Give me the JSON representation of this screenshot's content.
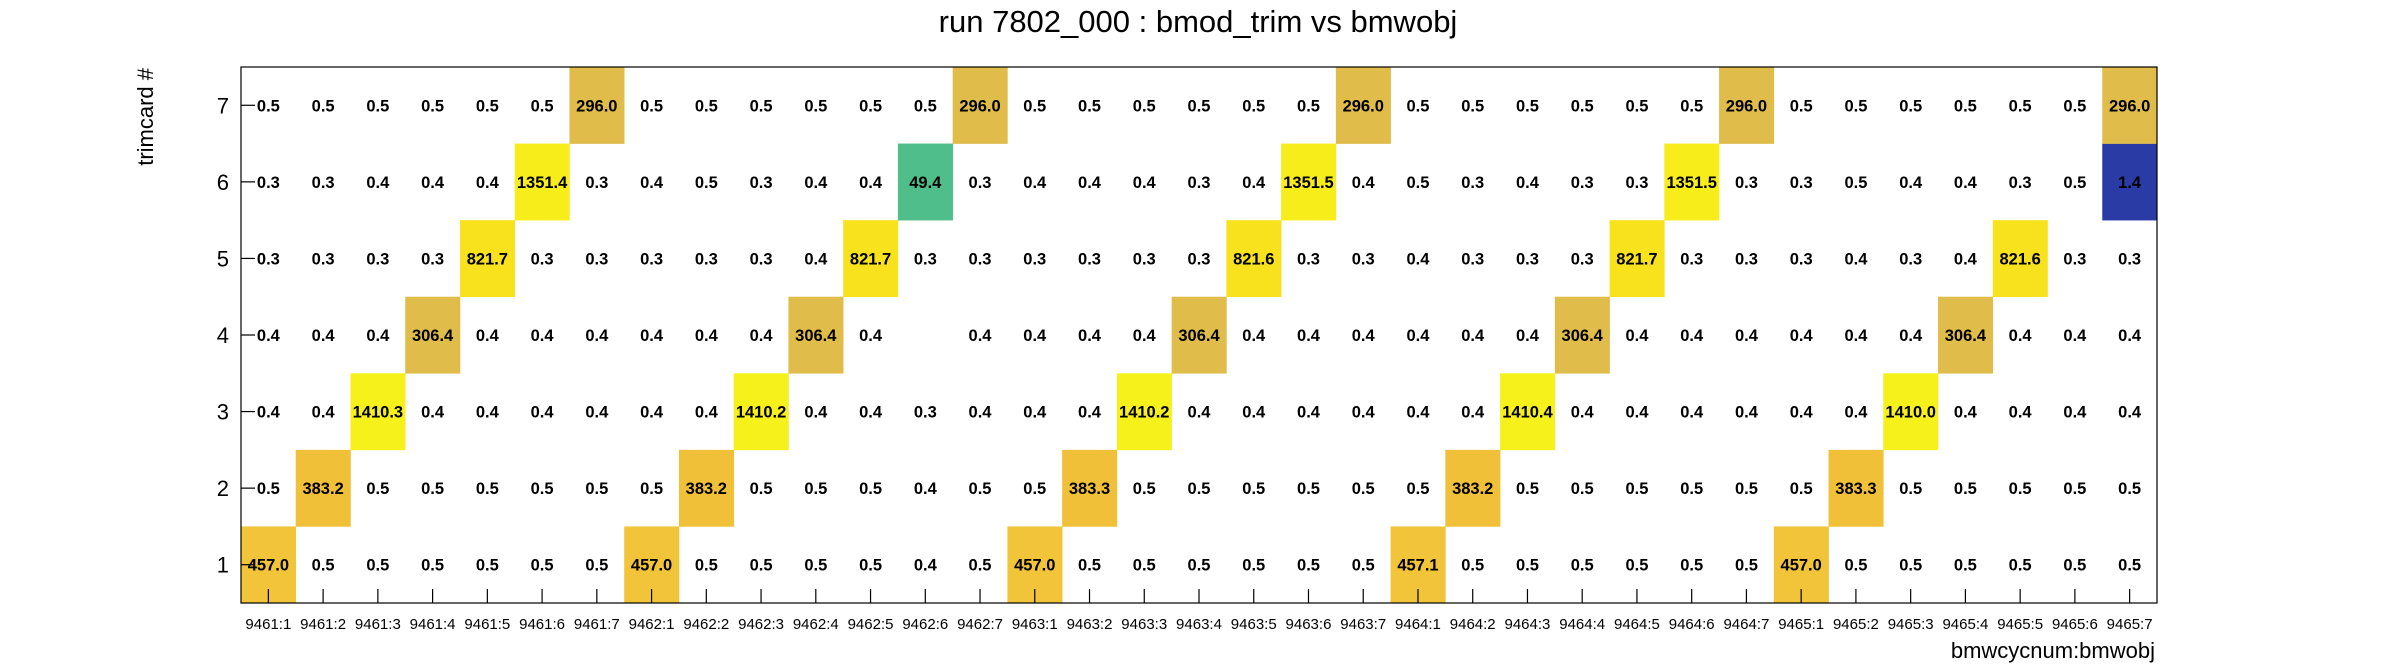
{
  "chart_data": {
    "type": "heatmap",
    "title": "run 7802_000 : bmod_trim vs bmwobj",
    "xlabel": "bmwcycnum:bmwobj",
    "ylabel": "trimcard #",
    "x_categories": [
      "9461:1",
      "9461:2",
      "9461:3",
      "9461:4",
      "9461:5",
      "9461:6",
      "9461:7",
      "9462:1",
      "9462:2",
      "9462:3",
      "9462:4",
      "9462:5",
      "9462:6",
      "9462:7",
      "9463:1",
      "9463:2",
      "9463:3",
      "9463:4",
      "9463:5",
      "9463:6",
      "9463:7",
      "9464:1",
      "9464:2",
      "9464:3",
      "9464:4",
      "9464:5",
      "9464:6",
      "9464:7",
      "9465:1",
      "9465:2",
      "9465:3",
      "9465:4",
      "9465:5",
      "9465:6",
      "9465:7"
    ],
    "y_categories": [
      "1",
      "2",
      "3",
      "4",
      "5",
      "6",
      "7"
    ],
    "values": [
      [
        457.0,
        0.5,
        0.5,
        0.5,
        0.5,
        0.5,
        0.5,
        457.0,
        0.5,
        0.5,
        0.5,
        0.5,
        0.4,
        0.5,
        457.0,
        0.5,
        0.5,
        0.5,
        0.5,
        0.5,
        0.5,
        457.1,
        0.5,
        0.5,
        0.5,
        0.5,
        0.5,
        0.5,
        457.0,
        0.5,
        0.5,
        0.5,
        0.5,
        0.5,
        0.5
      ],
      [
        0.5,
        383.2,
        0.5,
        0.5,
        0.5,
        0.5,
        0.5,
        0.5,
        383.2,
        0.5,
        0.5,
        0.5,
        0.4,
        0.5,
        0.5,
        383.3,
        0.5,
        0.5,
        0.5,
        0.5,
        0.5,
        0.5,
        383.2,
        0.5,
        0.5,
        0.5,
        0.5,
        0.5,
        0.5,
        383.3,
        0.5,
        0.5,
        0.5,
        0.5,
        0.5
      ],
      [
        0.4,
        0.4,
        1410.3,
        0.4,
        0.4,
        0.4,
        0.4,
        0.4,
        0.4,
        1410.2,
        0.4,
        0.4,
        0.3,
        0.4,
        0.4,
        0.4,
        1410.2,
        0.4,
        0.4,
        0.4,
        0.4,
        0.4,
        0.4,
        1410.4,
        0.4,
        0.4,
        0.4,
        0.4,
        0.4,
        0.4,
        1410.0,
        0.4,
        0.4,
        0.4,
        0.4
      ],
      [
        0.4,
        0.4,
        0.4,
        306.4,
        0.4,
        0.4,
        0.4,
        0.4,
        0.4,
        0.4,
        306.4,
        0.4,
        null,
        0.4,
        0.4,
        0.4,
        0.4,
        306.4,
        0.4,
        0.4,
        0.4,
        0.4,
        0.4,
        0.4,
        306.4,
        0.4,
        0.4,
        0.4,
        0.4,
        0.4,
        0.4,
        306.4,
        0.4,
        0.4,
        0.4
      ],
      [
        0.3,
        0.3,
        0.3,
        0.3,
        821.7,
        0.3,
        0.3,
        0.3,
        0.3,
        0.3,
        0.4,
        821.7,
        0.3,
        0.3,
        0.3,
        0.3,
        0.3,
        0.3,
        821.6,
        0.3,
        0.3,
        0.4,
        0.3,
        0.3,
        0.3,
        821.7,
        0.3,
        0.3,
        0.3,
        0.4,
        0.3,
        0.4,
        821.6,
        0.3,
        0.3
      ],
      [
        0.3,
        0.3,
        0.4,
        0.4,
        0.4,
        1351.4,
        0.3,
        0.4,
        0.5,
        0.3,
        0.4,
        0.4,
        49.4,
        0.3,
        0.4,
        0.4,
        0.4,
        0.3,
        0.4,
        1351.5,
        0.4,
        0.5,
        0.3,
        0.4,
        0.3,
        0.3,
        1351.5,
        0.3,
        0.3,
        0.5,
        0.4,
        0.4,
        0.3,
        0.5,
        1.4
      ],
      [
        0.5,
        0.5,
        0.5,
        0.5,
        0.5,
        0.5,
        296.0,
        0.5,
        0.5,
        0.5,
        0.5,
        0.5,
        0.5,
        296.0,
        0.5,
        0.5,
        0.5,
        0.5,
        0.5,
        0.5,
        296.0,
        0.5,
        0.5,
        0.5,
        0.5,
        0.5,
        0.5,
        296.0,
        0.5,
        0.5,
        0.5,
        0.5,
        0.5,
        0.5,
        296.0
      ]
    ],
    "colors": {
      "457.0": "#f2c43a",
      "457.1": "#f2c43a",
      "383.2": "#f0c038",
      "383.3": "#f0c038",
      "1410.3": "#f6f01b",
      "1410.2": "#f6f01b",
      "1410.4": "#f6f01b",
      "1410.0": "#f6f01b",
      "306.4": "#e0bc4a",
      "821.7": "#f8e21e",
      "821.6": "#f8e21e",
      "1351.4": "#f7ed1b",
      "1351.5": "#f7ed1b",
      "49.4": "#4fbe8b",
      "1.4": "#2a3ba6",
      "296.0": "#e0bc4a"
    },
    "grid": false
  }
}
